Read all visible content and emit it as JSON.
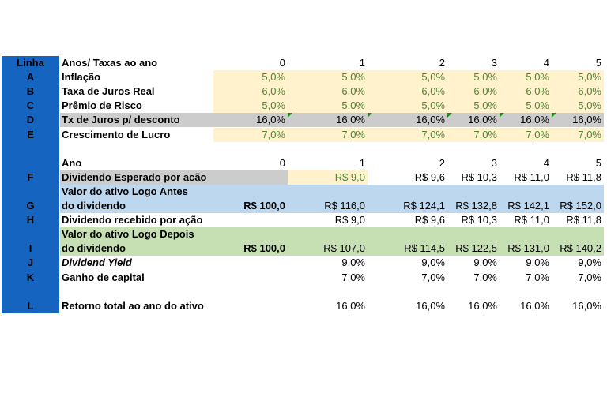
{
  "colors": {
    "label_column": "#1565c0",
    "yellow": "#fff2cc",
    "gray": "#cccccc",
    "blue": "#bdd7ee",
    "green": "#c6e0b4",
    "green_text": "#548235"
  },
  "sheet": {
    "header_label": "Linha",
    "rows": [
      {
        "label": "",
        "desc": "Anos/ Taxas ao ano",
        "values": [
          "0",
          "1",
          "2",
          "3",
          "4",
          "5"
        ],
        "style": "plain"
      },
      {
        "label": "A",
        "desc": "Inflação",
        "values": [
          "5,0%",
          "5,0%",
          "5,0%",
          "5,0%",
          "5,0%",
          "5,0%"
        ],
        "style": "yellow"
      },
      {
        "label": "B",
        "desc": "Taxa de Juros Real",
        "values": [
          "6,0%",
          "6,0%",
          "6,0%",
          "6,0%",
          "6,0%",
          "6,0%"
        ],
        "style": "yellow"
      },
      {
        "label": "C",
        "desc": "Prêmio de Risco",
        "values": [
          "5,0%",
          "5,0%",
          "5,0%",
          "5,0%",
          "5,0%",
          "5,0%"
        ],
        "style": "yellow"
      },
      {
        "label": "D",
        "desc": "Tx de Juros p/ desconto",
        "values": [
          "16,0%",
          "16,0%",
          "16,0%",
          "16,0%",
          "16,0%",
          "16,0%"
        ],
        "style": "gray"
      },
      {
        "label": "E",
        "desc": "Crescimento de Lucro",
        "values": [
          "7,0%",
          "7,0%",
          "7,0%",
          "7,0%",
          "7,0%",
          "7,0%"
        ],
        "style": "yellow"
      },
      {
        "label": "",
        "desc": "",
        "values": [
          "",
          "",
          "",
          "",
          "",
          ""
        ],
        "style": "plain"
      },
      {
        "label": "",
        "desc": "Ano",
        "values": [
          "0",
          "1",
          "2",
          "3",
          "4",
          "5"
        ],
        "style": "plain"
      },
      {
        "label": "F",
        "desc": "Dividendo Esperado por acão",
        "values": [
          "",
          "R$ 9,0",
          "R$ 9,6",
          "R$ 10,3",
          "R$ 11,0",
          "R$ 11,8"
        ],
        "style": "gray"
      },
      {
        "label": "",
        "desc": "Valor do ativo Logo Antes",
        "values": [
          "",
          "",
          "",
          "",
          "",
          ""
        ],
        "style": "blue"
      },
      {
        "label": "G",
        "desc": "do dividendo",
        "values": [
          "R$ 100,0",
          "R$ 116,0",
          "R$ 124,1",
          "R$ 132,8",
          "R$ 142,1",
          "R$ 152,0"
        ],
        "style": "blue"
      },
      {
        "label": "H",
        "desc": "Dividendo recebido por ação",
        "values": [
          "",
          "R$ 9,0",
          "R$ 9,6",
          "R$ 10,3",
          "R$ 11,0",
          "R$ 11,8"
        ],
        "style": "plain"
      },
      {
        "label": "",
        "desc": "Valor do ativo Logo Depois",
        "values": [
          "",
          "",
          "",
          "",
          "",
          ""
        ],
        "style": "green"
      },
      {
        "label": "I",
        "desc": "do dividendo",
        "values": [
          "R$ 100,0",
          "R$ 107,0",
          "R$ 114,5",
          "R$ 122,5",
          "R$ 131,0",
          "R$ 140,2"
        ],
        "style": "green"
      },
      {
        "label": "J",
        "desc": "Dividend Yield",
        "values": [
          "",
          "9,0%",
          "9,0%",
          "9,0%",
          "9,0%",
          "9,0%"
        ],
        "style": "plain"
      },
      {
        "label": "K",
        "desc": "Ganho de capital",
        "values": [
          "",
          "7,0%",
          "7,0%",
          "7,0%",
          "7,0%",
          "7,0%"
        ],
        "style": "plain"
      },
      {
        "label": "",
        "desc": "",
        "values": [
          "",
          "",
          "",
          "",
          "",
          ""
        ],
        "style": "plain"
      },
      {
        "label": "L",
        "desc": "Retorno total ao ano do ativo",
        "values": [
          "",
          "16,0%",
          "16,0%",
          "16,0%",
          "16,0%",
          "16,0%"
        ],
        "style": "plain"
      }
    ]
  }
}
